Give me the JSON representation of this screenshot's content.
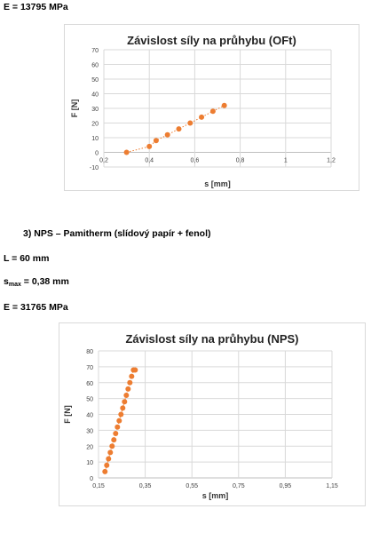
{
  "text": {
    "e_top": "E = 13795 MPa",
    "heading": "3)   NPS – Pamitherm (slídový papír + fenol)",
    "length": "L = 60 mm",
    "smax_s": "s",
    "smax_sub": "max",
    "smax_val": " = 0,38 mm",
    "e_bottom": "E = 31765 MPa"
  },
  "chart_data": [
    {
      "type": "scatter",
      "title": "Závislost síly na průhybu (OFt)",
      "xlabel": "s [mm]",
      "ylabel": "F [N]",
      "xlim": [
        0.2,
        1.2
      ],
      "ylim": [
        -10,
        70
      ],
      "xticks": [
        "0,2",
        "0,4",
        "0,6",
        "0,8",
        "1",
        "1,2"
      ],
      "yticks": [
        "-10",
        "0",
        "10",
        "20",
        "30",
        "40",
        "50",
        "60",
        "70"
      ],
      "grid": true,
      "trendline": "dotted",
      "color": "#ED7D31",
      "series": [
        {
          "x": [
            0.3,
            0.4,
            0.43,
            0.48,
            0.53,
            0.58,
            0.63,
            0.68,
            0.73
          ],
          "y": [
            0,
            4,
            8,
            12,
            16,
            20,
            24,
            28,
            32
          ]
        }
      ]
    },
    {
      "type": "scatter",
      "title": "Závislost síly na průhybu (NPS)",
      "xlabel": "s [mm]",
      "ylabel": "F [N]",
      "xlim": [
        0.15,
        1.2
      ],
      "ylim": [
        0,
        80
      ],
      "xticks": [
        "0,15",
        "0,35",
        "0,55",
        "0,75",
        "0,95",
        "1,15"
      ],
      "yticks": [
        "0",
        "10",
        "20",
        "30",
        "40",
        "50",
        "60",
        "70",
        "80"
      ],
      "grid": true,
      "trendline": "dotted",
      "color": "#ED7D31",
      "series": [
        {
          "x": [
            0.179,
            0.187,
            0.195,
            0.203,
            0.211,
            0.219,
            0.227,
            0.235,
            0.243,
            0.251,
            0.259,
            0.267,
            0.275,
            0.283,
            0.291,
            0.299,
            0.307,
            0.315
          ],
          "y": [
            4,
            8,
            12,
            16,
            20,
            24,
            28,
            32,
            36,
            40,
            44,
            48,
            52,
            56,
            60,
            64,
            68,
            68
          ]
        }
      ]
    }
  ]
}
